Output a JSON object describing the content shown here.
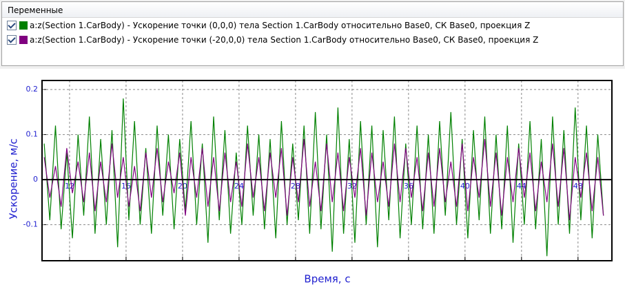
{
  "panel": {
    "title": "Переменные"
  },
  "chart_data": {
    "type": "line",
    "x_label": "Время, с",
    "y_label": "Ускорение, м/с",
    "xlim": [
      10.05,
      50.4
    ],
    "ylim": [
      -0.18,
      0.22
    ],
    "xticks": [
      12,
      16,
      20,
      24,
      28,
      32,
      36,
      40,
      44,
      48
    ],
    "yticks": [
      -0.1,
      0,
      0.1,
      0.2
    ],
    "grid": true,
    "x": [
      10.2,
      10.6,
      11,
      11.4,
      11.8,
      12.2,
      12.6,
      13,
      13.4,
      13.8,
      14.2,
      14.6,
      15,
      15.4,
      15.8,
      16.2,
      16.6,
      17,
      17.4,
      17.8,
      18.2,
      18.6,
      19,
      19.4,
      19.8,
      20.2,
      20.6,
      21,
      21.4,
      21.8,
      22.2,
      22.6,
      23,
      23.4,
      23.8,
      24.2,
      24.6,
      25,
      25.4,
      25.8,
      26.2,
      26.6,
      27,
      27.4,
      27.8,
      28.2,
      28.6,
      29,
      29.4,
      29.8,
      30.2,
      30.6,
      31,
      31.4,
      31.8,
      32.2,
      32.6,
      33,
      33.4,
      33.8,
      34.2,
      34.6,
      35,
      35.4,
      35.8,
      36.2,
      36.6,
      37,
      37.4,
      37.8,
      38.2,
      38.6,
      39,
      39.4,
      39.8,
      40.2,
      40.6,
      41,
      41.4,
      41.8,
      42.2,
      42.6,
      43,
      43.4,
      43.8,
      44.2,
      44.6,
      45,
      45.4,
      45.8,
      46.2,
      46.6,
      47,
      47.4,
      47.8,
      48.2,
      48.6,
      49,
      49.4,
      49.8
    ],
    "series": [
      {
        "name": "a:z(Section 1.CarBody) - Ускорение точки (0,0,0) тела Section 1.CarBody относительно Base0, СК Base0, проекция Z",
        "color": "#008000",
        "values": [
          0.08,
          -0.09,
          0.12,
          -0.11,
          0.06,
          -0.13,
          0.1,
          -0.08,
          0.14,
          -0.12,
          0.09,
          -0.1,
          0.11,
          -0.15,
          0.18,
          -0.09,
          0.13,
          -0.1,
          0.07,
          -0.12,
          0.12,
          -0.08,
          0.1,
          -0.11,
          0.09,
          -0.07,
          0.13,
          -0.1,
          0.08,
          -0.14,
          0.14,
          -0.09,
          0.11,
          -0.12,
          0.06,
          -0.1,
          0.12,
          -0.08,
          0.1,
          -0.11,
          0.09,
          -0.13,
          0.13,
          -0.1,
          0.08,
          -0.09,
          0.12,
          -0.12,
          0.15,
          -0.11,
          0.1,
          -0.16,
          0.16,
          -0.12,
          0.09,
          -0.14,
          0.13,
          -0.1,
          0.12,
          -0.15,
          0.11,
          -0.09,
          0.14,
          -0.13,
          0.08,
          -0.1,
          0.12,
          -0.11,
          0.1,
          -0.12,
          0.13,
          -0.08,
          0.15,
          -0.1,
          0.09,
          -0.13,
          0.11,
          -0.09,
          0.14,
          -0.12,
          0.1,
          -0.11,
          0.12,
          -0.14,
          0.08,
          -0.1,
          0.13,
          -0.11,
          0.09,
          -0.17,
          0.14,
          -0.1,
          0.11,
          -0.12,
          0.16,
          -0.09,
          0.12,
          -0.13,
          0.1,
          -0.08
        ]
      },
      {
        "name": "a:z(Section 1.CarBody) - Ускорение точки (-20,0,0) тела Section 1.CarBody относительно Base0, СК Base0, проекция Z",
        "color": "#800080",
        "values": [
          0.05,
          -0.04,
          0.03,
          -0.06,
          0.07,
          -0.03,
          0.04,
          -0.05,
          0.06,
          -0.07,
          0.04,
          -0.05,
          0.08,
          -0.04,
          0.05,
          -0.06,
          0.03,
          -0.07,
          0.06,
          -0.04,
          0.07,
          -0.05,
          0.04,
          -0.03,
          0.06,
          -0.08,
          0.05,
          -0.04,
          0.07,
          -0.06,
          0.05,
          -0.07,
          0.06,
          -0.05,
          0.04,
          -0.06,
          0.08,
          -0.04,
          0.05,
          -0.07,
          0.06,
          -0.04,
          0.07,
          -0.08,
          0.05,
          -0.05,
          0.09,
          -0.06,
          0.04,
          -0.07,
          0.08,
          -0.05,
          0.06,
          -0.07,
          0.05,
          -0.04,
          0.07,
          -0.08,
          0.06,
          -0.05,
          0.04,
          -0.06,
          0.08,
          -0.05,
          0.07,
          -0.04,
          0.05,
          -0.07,
          0.06,
          -0.06,
          0.07,
          -0.05,
          0.04,
          -0.06,
          0.08,
          -0.07,
          0.05,
          -0.04,
          0.09,
          -0.06,
          0.06,
          -0.08,
          0.05,
          -0.05,
          0.07,
          -0.04,
          0.06,
          -0.07,
          0.04,
          -0.05,
          0.08,
          -0.06,
          0.07,
          -0.09,
          0.05,
          -0.04,
          0.06,
          -0.07,
          0.05,
          -0.08
        ]
      }
    ]
  }
}
